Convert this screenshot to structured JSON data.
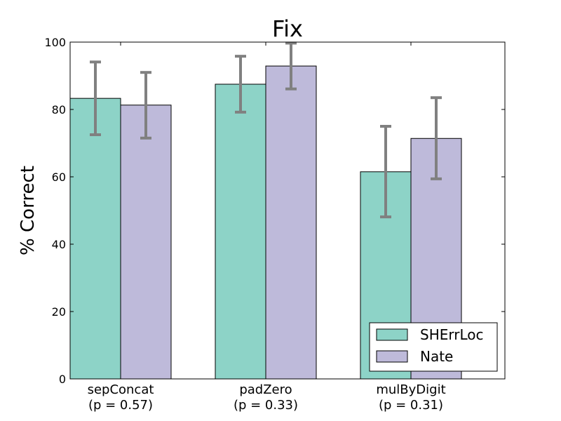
{
  "chart_data": {
    "type": "bar",
    "title": "Fix",
    "xlabel": "",
    "ylabel": "% Correct",
    "ylim": [
      0,
      100
    ],
    "yticks": [
      0,
      20,
      40,
      60,
      80,
      100
    ],
    "categories": [
      "sepConcat",
      "padZero",
      "mulByDigit"
    ],
    "category_notes": [
      "(p = 0.57)",
      "(p = 0.33)",
      "(p = 0.31)"
    ],
    "series": [
      {
        "name": "SHErrLoc",
        "color": "#8dd3c7",
        "values": [
          83.3,
          87.5,
          61.5
        ],
        "error_low": [
          72.5,
          79.2,
          48.1
        ],
        "error_high": [
          94.1,
          95.8,
          75.0
        ]
      },
      {
        "name": "Nate",
        "color": "#bebada",
        "values": [
          81.3,
          92.9,
          71.4
        ],
        "error_low": [
          71.5,
          86.1,
          59.4
        ],
        "error_high": [
          91.0,
          99.7,
          83.5
        ]
      }
    ],
    "error_bar_color": "#808080",
    "grid": false,
    "legend": "lower-right"
  }
}
